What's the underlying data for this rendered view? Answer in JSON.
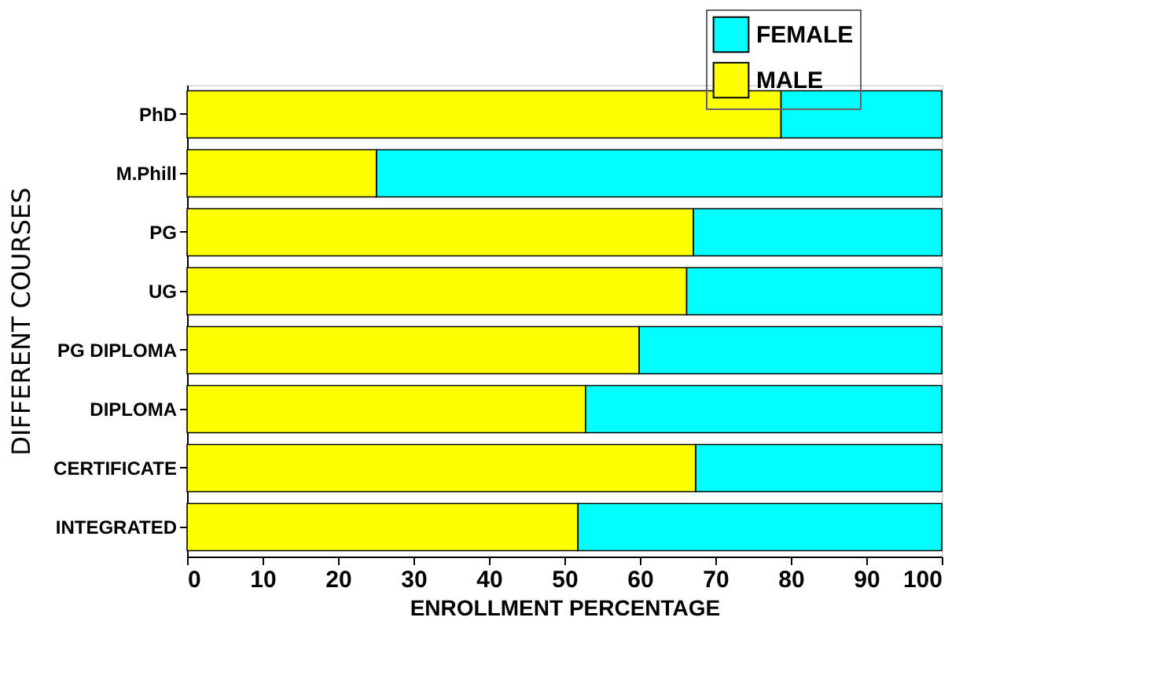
{
  "chart_data": {
    "type": "bar",
    "orientation": "horizontal",
    "stacked": true,
    "xlabel": "ENROLLMENT PERCENTAGE",
    "ylabel": "DIFFERENT COURSES",
    "categories": [
      "PhD",
      "M.Phill",
      "PG",
      "UG",
      "PG DIPLOMA",
      "DIPLOMA",
      "CERTIFICATE",
      "INTEGRATED"
    ],
    "series": [
      {
        "name": "MALE",
        "color": "#ffff00",
        "values": [
          78.7,
          25.1,
          67.1,
          66.2,
          59.9,
          52.8,
          67.4,
          51.8
        ]
      },
      {
        "name": "FEMALE",
        "color": "#00ffff",
        "values": [
          21.3,
          74.9,
          32.9,
          33.8,
          40.1,
          47.2,
          32.6,
          48.2
        ]
      }
    ],
    "xlim": [
      0,
      100
    ],
    "xticks": [
      0,
      10,
      20,
      30,
      40,
      50,
      60,
      70,
      80,
      90,
      100
    ],
    "grid": false,
    "legend": "top right"
  }
}
